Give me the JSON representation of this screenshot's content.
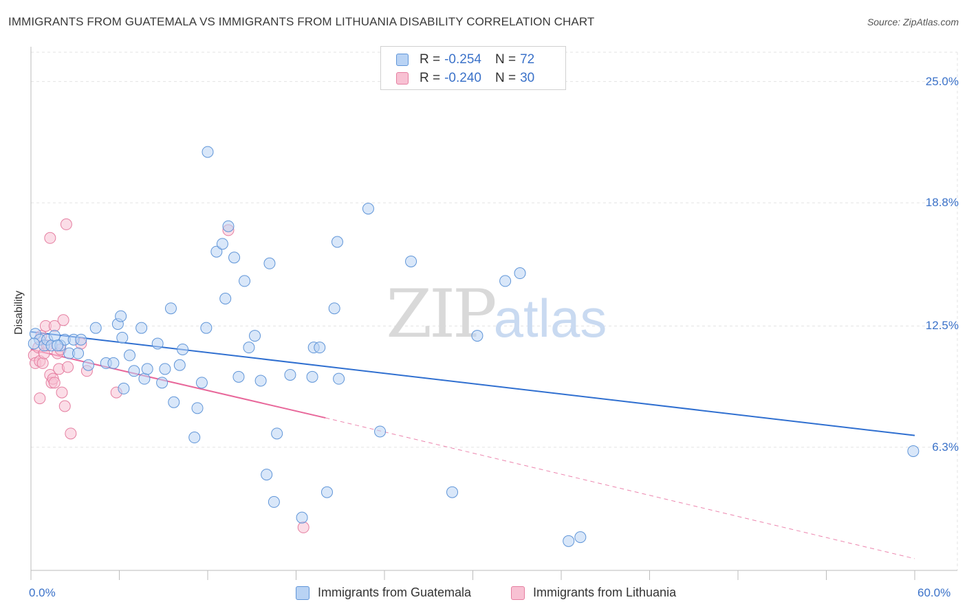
{
  "header": {
    "title": "IMMIGRANTS FROM GUATEMALA VS IMMIGRANTS FROM LITHUANIA DISABILITY CORRELATION CHART",
    "source": "Source: ZipAtlas.com"
  },
  "watermark": {
    "zip": "ZIP",
    "atlas": "atlas"
  },
  "legend": {
    "rows": [
      {
        "r_label": "R = ",
        "r_value": "-0.254",
        "n_label": "N = ",
        "n_value": "72"
      },
      {
        "r_label": "R = ",
        "r_value": "-0.240",
        "n_label": "N = ",
        "n_value": "30"
      }
    ]
  },
  "bottom_legend": {
    "items": [
      {
        "label": "Immigrants from Guatemala"
      },
      {
        "label": "Immigrants from Lithuania"
      }
    ]
  },
  "colors": {
    "blue_fill": "#b9d3f4",
    "blue_stroke": "#5f95d8",
    "blue_line": "#2f6fd0",
    "pink_fill": "#f8c1d3",
    "pink_stroke": "#e57ea0",
    "pink_line": "#e8679a",
    "tick_text": "#3b72c9",
    "grid": "#e3e3e3"
  },
  "chart_data": {
    "type": "scatter",
    "title": "IMMIGRANTS FROM GUATEMALA VS IMMIGRANTS FROM LITHUANIA DISABILITY CORRELATION CHART",
    "xlabel": "",
    "ylabel": "Disability",
    "xlim": [
      0,
      60
    ],
    "ylim": [
      0,
      26.5
    ],
    "x_tick_labels": [
      "0.0%",
      "60.0%"
    ],
    "y_ticks": [
      6.3,
      12.5,
      18.8,
      25.0
    ],
    "y_tick_labels": [
      "6.3%",
      "12.5%",
      "18.8%",
      "25.0%"
    ],
    "grid": true,
    "legend_position": "top-center",
    "series": [
      {
        "name": "Immigrants from Guatemala",
        "color": "blue",
        "trend": {
          "x": [
            0,
            60
          ],
          "y": [
            12.2,
            6.9
          ]
        },
        "points": [
          [
            0.3,
            12.1
          ],
          [
            0.6,
            11.8
          ],
          [
            0.9,
            11.5
          ],
          [
            1.1,
            11.8
          ],
          [
            1.4,
            11.5
          ],
          [
            1.6,
            12.0
          ],
          [
            2.0,
            11.5
          ],
          [
            2.3,
            11.8
          ],
          [
            2.6,
            11.1
          ],
          [
            2.9,
            11.8
          ],
          [
            3.2,
            11.1
          ],
          [
            3.4,
            11.8
          ],
          [
            3.9,
            10.5
          ],
          [
            4.4,
            12.4
          ],
          [
            5.1,
            10.6
          ],
          [
            5.6,
            10.6
          ],
          [
            5.9,
            12.6
          ],
          [
            6.1,
            13.0
          ],
          [
            6.2,
            11.9
          ],
          [
            6.3,
            9.3
          ],
          [
            6.7,
            11.0
          ],
          [
            7.0,
            10.2
          ],
          [
            7.5,
            12.4
          ],
          [
            7.7,
            9.8
          ],
          [
            7.9,
            10.3
          ],
          [
            8.6,
            11.6
          ],
          [
            8.9,
            9.6
          ],
          [
            9.1,
            10.3
          ],
          [
            9.5,
            13.4
          ],
          [
            9.7,
            8.6
          ],
          [
            10.1,
            10.5
          ],
          [
            10.3,
            11.3
          ],
          [
            11.1,
            6.8
          ],
          [
            11.3,
            8.3
          ],
          [
            11.6,
            9.6
          ],
          [
            11.9,
            12.4
          ],
          [
            12.0,
            21.4
          ],
          [
            12.6,
            16.3
          ],
          [
            13.0,
            16.7
          ],
          [
            13.2,
            13.9
          ],
          [
            13.4,
            17.6
          ],
          [
            13.8,
            16.0
          ],
          [
            14.1,
            9.9
          ],
          [
            14.5,
            14.8
          ],
          [
            14.8,
            11.4
          ],
          [
            15.2,
            12.0
          ],
          [
            15.6,
            9.7
          ],
          [
            16.2,
            15.7
          ],
          [
            16.5,
            3.5
          ],
          [
            16.0,
            4.9
          ],
          [
            16.7,
            7.0
          ],
          [
            17.6,
            10.0
          ],
          [
            18.4,
            2.7
          ],
          [
            19.1,
            9.9
          ],
          [
            19.2,
            11.4
          ],
          [
            19.6,
            11.4
          ],
          [
            20.1,
            4.0
          ],
          [
            20.6,
            13.4
          ],
          [
            20.9,
            9.8
          ],
          [
            20.8,
            16.8
          ],
          [
            22.9,
            18.5
          ],
          [
            23.7,
            7.1
          ],
          [
            25.8,
            15.8
          ],
          [
            28.6,
            4.0
          ],
          [
            30.3,
            12.0
          ],
          [
            32.2,
            14.8
          ],
          [
            33.2,
            15.2
          ],
          [
            36.5,
            1.5
          ],
          [
            37.3,
            1.7
          ],
          [
            59.9,
            6.1
          ],
          [
            0.2,
            11.6
          ],
          [
            1.8,
            11.5
          ]
        ]
      },
      {
        "name": "Immigrants from Lithuania",
        "color": "pink",
        "trend": {
          "x": [
            0,
            20
          ],
          "y": [
            11.3,
            7.8
          ]
        },
        "trend_extension": {
          "x": [
            20,
            60
          ],
          "y": [
            7.8,
            0.6
          ]
        },
        "points": [
          [
            0.2,
            11.0
          ],
          [
            0.3,
            10.6
          ],
          [
            0.5,
            11.4
          ],
          [
            0.6,
            10.7
          ],
          [
            0.6,
            8.8
          ],
          [
            0.7,
            12.0
          ],
          [
            0.8,
            10.6
          ],
          [
            0.9,
            11.1
          ],
          [
            1.0,
            12.5
          ],
          [
            1.1,
            11.5
          ],
          [
            1.3,
            10.0
          ],
          [
            1.3,
            17.0
          ],
          [
            1.4,
            9.6
          ],
          [
            1.5,
            9.8
          ],
          [
            1.6,
            12.5
          ],
          [
            1.6,
            9.6
          ],
          [
            1.8,
            11.1
          ],
          [
            1.9,
            10.3
          ],
          [
            2.0,
            11.3
          ],
          [
            2.1,
            9.1
          ],
          [
            2.2,
            12.8
          ],
          [
            2.3,
            8.4
          ],
          [
            2.4,
            17.7
          ],
          [
            2.5,
            10.4
          ],
          [
            2.7,
            7.0
          ],
          [
            3.4,
            11.6
          ],
          [
            3.8,
            10.2
          ],
          [
            5.8,
            9.1
          ],
          [
            13.4,
            17.4
          ],
          [
            18.5,
            2.2
          ]
        ]
      }
    ]
  }
}
